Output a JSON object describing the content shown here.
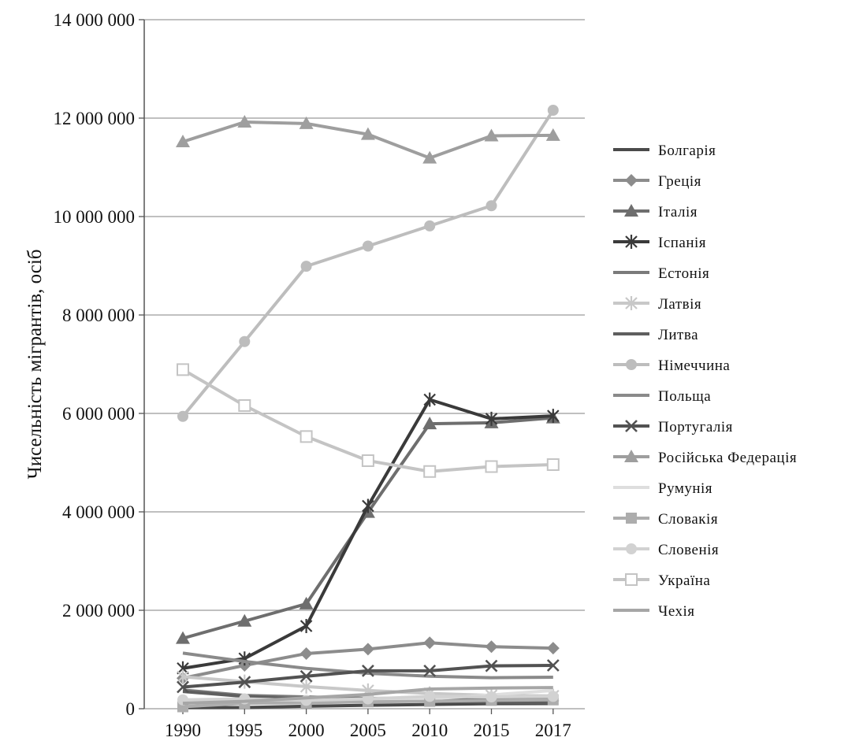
{
  "chart_data": {
    "type": "line",
    "title": "",
    "xlabel": "",
    "ylabel": "Чисельність мігрантів, осіб",
    "categories": [
      "1990",
      "1995",
      "2000",
      "2005",
      "2010",
      "2015",
      "2017"
    ],
    "y_ticks": [
      "0",
      "2 000 000",
      "4 000 000",
      "6 000 000",
      "8 000 000",
      "10 000 000",
      "12 000 000",
      "14 000 000"
    ],
    "ylim": [
      0,
      14000000
    ],
    "grid": "horizontal",
    "legend_position": "right",
    "series": [
      {
        "name": "Болгарія",
        "color": "#4a4a4a",
        "marker": "none",
        "values": [
          21500,
          25000,
          50000,
          70000,
          85000,
          102000,
          104000
        ]
      },
      {
        "name": "Греція",
        "color": "#8c8c8c",
        "marker": "diamond",
        "values": [
          620000,
          880000,
          1120000,
          1210000,
          1340000,
          1260000,
          1230000
        ]
      },
      {
        "name": "Італія",
        "color": "#6e6e6e",
        "marker": "triangle",
        "values": [
          1430000,
          1780000,
          2130000,
          3990000,
          5790000,
          5810000,
          5910000
        ]
      },
      {
        "name": "Іспанія",
        "color": "#3a3a3a",
        "marker": "star",
        "values": [
          820000,
          1020000,
          1680000,
          4120000,
          6280000,
          5890000,
          5950000
        ]
      },
      {
        "name": "Естонія",
        "color": "#7a7a7a",
        "marker": "none",
        "values": [
          380000,
          270000,
          240000,
          210000,
          210000,
          200000,
          200000
        ]
      },
      {
        "name": "Латвія",
        "color": "#c8c8c8",
        "marker": "star",
        "values": [
          650000,
          550000,
          450000,
          370000,
          310000,
          270000,
          260000
        ]
      },
      {
        "name": "Литва",
        "color": "#5e5e5e",
        "marker": "none",
        "values": [
          350000,
          250000,
          190000,
          160000,
          150000,
          135000,
          120000
        ]
      },
      {
        "name": "Німеччина",
        "color": "#bdbdbd",
        "marker": "circle",
        "values": [
          5940000,
          7460000,
          8990000,
          9400000,
          9810000,
          10220000,
          12160000
        ]
      },
      {
        "name": "Польща",
        "color": "#8a8a8a",
        "marker": "none",
        "values": [
          1130000,
          960000,
          820000,
          720000,
          660000,
          630000,
          640000
        ]
      },
      {
        "name": "Португалія",
        "color": "#525252",
        "marker": "x",
        "values": [
          440000,
          540000,
          660000,
          770000,
          770000,
          870000,
          880000
        ]
      },
      {
        "name": "Російська Федерація",
        "color": "#9e9e9e",
        "marker": "triangle",
        "values": [
          11520000,
          11920000,
          11890000,
          11670000,
          11190000,
          11640000,
          11650000
        ]
      },
      {
        "name": "Румунія",
        "color": "#dedede",
        "marker": "none",
        "values": [
          140000,
          130000,
          140000,
          160000,
          200000,
          280000,
          370000
        ]
      },
      {
        "name": "Словакія",
        "color": "#adadad",
        "marker": "square",
        "values": [
          40000,
          110000,
          120000,
          140000,
          150000,
          170000,
          180000
        ]
      },
      {
        "name": "Словенія",
        "color": "#d2d2d2",
        "marker": "circle",
        "values": [
          180000,
          200000,
          170000,
          200000,
          250000,
          240000,
          250000
        ]
      },
      {
        "name": "Україна",
        "color": "#c4c4c4",
        "marker": "square-open",
        "values": [
          6890000,
          6160000,
          5530000,
          5040000,
          4820000,
          4920000,
          4960000
        ]
      },
      {
        "name": "Чехія",
        "color": "#a6a6a6",
        "marker": "none",
        "values": [
          110000,
          150000,
          220000,
          290000,
          400000,
          420000,
          430000
        ]
      }
    ]
  }
}
